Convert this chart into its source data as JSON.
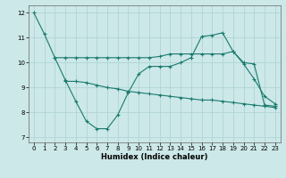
{
  "xlabel": "Humidex (Indice chaleur)",
  "bg_color": "#cce8e8",
  "line_color": "#1a7a6e",
  "grid_color": "#b0d4d4",
  "xlim": [
    -0.5,
    23.5
  ],
  "ylim": [
    6.8,
    12.3
  ],
  "xticks": [
    0,
    1,
    2,
    3,
    4,
    5,
    6,
    7,
    8,
    9,
    10,
    11,
    12,
    13,
    14,
    15,
    16,
    17,
    18,
    19,
    20,
    21,
    22,
    23
  ],
  "yticks": [
    7,
    8,
    9,
    10,
    11,
    12
  ],
  "line1_x": [
    0,
    1,
    2,
    3,
    4,
    5,
    6,
    7,
    8,
    9,
    10,
    11,
    12,
    13,
    14,
    15,
    16,
    17,
    18,
    19,
    20,
    21,
    22,
    23
  ],
  "line1_y": [
    12.0,
    11.15,
    10.2,
    9.3,
    8.45,
    7.65,
    7.35,
    7.35,
    7.9,
    8.8,
    9.55,
    9.85,
    9.85,
    9.85,
    10.0,
    10.2,
    11.05,
    11.1,
    11.2,
    10.45,
    9.95,
    9.35,
    8.65,
    8.35
  ],
  "line2_x": [
    2,
    3,
    4,
    5,
    6,
    7,
    8,
    9,
    10,
    11,
    12,
    13,
    14,
    15,
    16,
    17,
    18,
    19,
    20,
    21,
    22,
    23
  ],
  "line2_y": [
    10.2,
    10.2,
    10.2,
    10.2,
    10.2,
    10.2,
    10.2,
    10.2,
    10.2,
    10.2,
    10.25,
    10.35,
    10.35,
    10.35,
    10.35,
    10.35,
    10.35,
    10.45,
    10.0,
    9.95,
    8.3,
    8.25
  ],
  "line3_x": [
    3,
    4,
    5,
    6,
    7,
    8,
    9,
    10,
    11,
    12,
    13,
    14,
    15,
    16,
    17,
    18,
    19,
    20,
    21,
    22,
    23
  ],
  "line3_y": [
    9.25,
    9.25,
    9.2,
    9.1,
    9.0,
    8.95,
    8.85,
    8.8,
    8.75,
    8.7,
    8.65,
    8.6,
    8.55,
    8.5,
    8.5,
    8.45,
    8.4,
    8.35,
    8.3,
    8.25,
    8.2
  ]
}
